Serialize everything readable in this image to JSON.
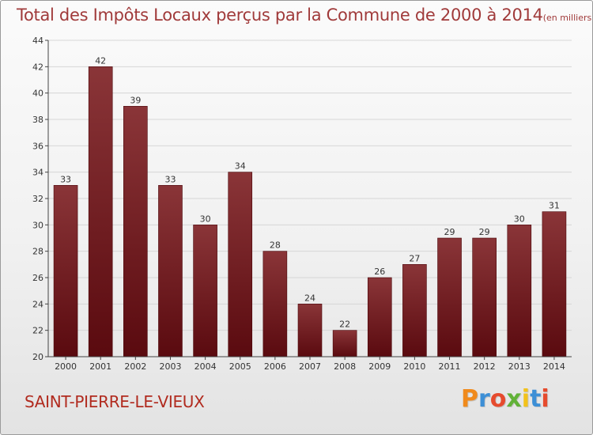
{
  "title": "Total des Impôts Locaux perçus par la Commune de 2000 à 2014",
  "title_unit": "(en milliers d'€)",
  "commune": "SAINT-PIERRE-LE-VIEUX",
  "logo": {
    "letters": [
      "P",
      "r",
      "o",
      "x",
      "i",
      "t",
      "i"
    ],
    "colors": [
      "#f08a1c",
      "#3d8fd6",
      "#e64b2e",
      "#62b238",
      "#f2c21b",
      "#3d8fd6",
      "#e64b2e"
    ]
  },
  "colors": {
    "bar_top": "#8a3538",
    "bar_bottom": "#5a0a0f",
    "title": "#a03a3a",
    "commune": "#b12b1f",
    "axis": "#444444",
    "grid": "#d6d6d6"
  },
  "chart_data": {
    "type": "bar",
    "categories": [
      "2000",
      "2001",
      "2002",
      "2003",
      "2004",
      "2005",
      "2006",
      "2007",
      "2008",
      "2009",
      "2010",
      "2011",
      "2012",
      "2013",
      "2014"
    ],
    "values": [
      33,
      42,
      39,
      33,
      30,
      34,
      28,
      24,
      22,
      26,
      27,
      29,
      29,
      30,
      31
    ],
    "ylim": [
      20,
      44
    ],
    "yticks": [
      20,
      22,
      24,
      26,
      28,
      30,
      32,
      34,
      36,
      38,
      40,
      42,
      44
    ],
    "grid": true,
    "data_labels": true
  }
}
